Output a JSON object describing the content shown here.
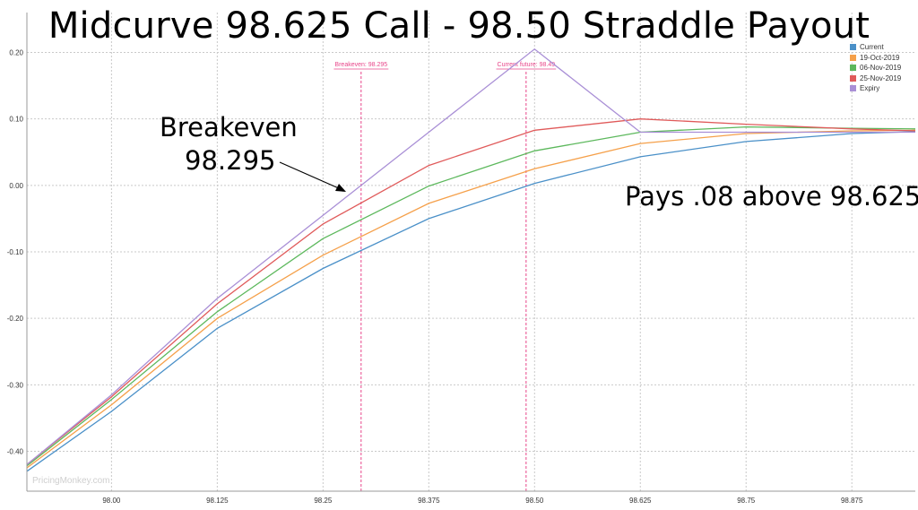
{
  "title": "Midcurve 98.625 Call - 98.50 Straddle Payout",
  "annotations": {
    "breakeven_label": "Breakeven",
    "breakeven_value": "98.295",
    "pays_text": "Pays .08 above 98.625"
  },
  "watermark": "PricingMonkey.com",
  "colors": {
    "current": "#4a90c8",
    "oct19": "#f5a04a",
    "nov06": "#5cb85c",
    "nov25": "#e05a5a",
    "expiry": "#a98fd6",
    "marker": "#e8468a",
    "grid": "#c9c9c9"
  },
  "chart_data": {
    "type": "line",
    "xlim": [
      97.9,
      98.95
    ],
    "ylim": [
      -0.46,
      0.26
    ],
    "x_ticks": [
      98.0,
      98.125,
      98.25,
      98.375,
      98.5,
      98.625,
      98.75,
      98.875
    ],
    "x_tick_labels": [
      "98.00",
      "98.125",
      "98.25",
      "98.375",
      "98.50",
      "98.625",
      "98.75",
      "98.875"
    ],
    "y_ticks": [
      0.2,
      0.1,
      0.0,
      -0.1,
      -0.2,
      -0.3,
      -0.4
    ],
    "y_tick_labels": [
      "0.20",
      "0.10",
      "0.00",
      "-0.10",
      "-0.20",
      "-0.30",
      "-0.40"
    ],
    "grid": true,
    "legend_position": "top-right",
    "markers": [
      {
        "x": 98.295,
        "label": "Breakeven: 98.295"
      },
      {
        "x": 98.49,
        "label": "Current future: 98.49"
      }
    ],
    "series": [
      {
        "name": "Current",
        "color": "#4a90c8",
        "x": [
          97.9,
          98.0,
          98.125,
          98.25,
          98.375,
          98.5,
          98.625,
          98.75,
          98.875,
          98.95
        ],
        "y": [
          -0.43,
          -0.34,
          -0.215,
          -0.125,
          -0.05,
          0.003,
          0.043,
          0.066,
          0.078,
          0.081
        ]
      },
      {
        "name": "19-Oct-2019",
        "color": "#f5a04a",
        "x": [
          97.9,
          98.0,
          98.125,
          98.25,
          98.375,
          98.5,
          98.625,
          98.75,
          98.875,
          98.95
        ],
        "y": [
          -0.425,
          -0.33,
          -0.2,
          -0.105,
          -0.027,
          0.025,
          0.063,
          0.078,
          0.082,
          0.083
        ]
      },
      {
        "name": "06-Nov-2019",
        "color": "#5cb85c",
        "x": [
          97.9,
          98.0,
          98.125,
          98.25,
          98.375,
          98.5,
          98.625,
          98.75,
          98.875,
          98.95
        ],
        "y": [
          -0.422,
          -0.322,
          -0.19,
          -0.08,
          -0.001,
          0.052,
          0.08,
          0.088,
          0.086,
          0.085
        ]
      },
      {
        "name": "25-Nov-2019",
        "color": "#e05a5a",
        "x": [
          97.9,
          98.0,
          98.125,
          98.25,
          98.375,
          98.5,
          98.625,
          98.75,
          98.875,
          98.95
        ],
        "y": [
          -0.42,
          -0.318,
          -0.178,
          -0.058,
          0.03,
          0.083,
          0.1,
          0.092,
          0.085,
          0.082
        ]
      },
      {
        "name": "Expiry",
        "color": "#a98fd6",
        "x": [
          97.9,
          98.0,
          98.125,
          98.25,
          98.375,
          98.5,
          98.625,
          98.75,
          98.875,
          98.95
        ],
        "y": [
          -0.42,
          -0.315,
          -0.17,
          -0.045,
          0.08,
          0.205,
          0.08,
          0.08,
          0.08,
          0.08
        ]
      }
    ]
  }
}
